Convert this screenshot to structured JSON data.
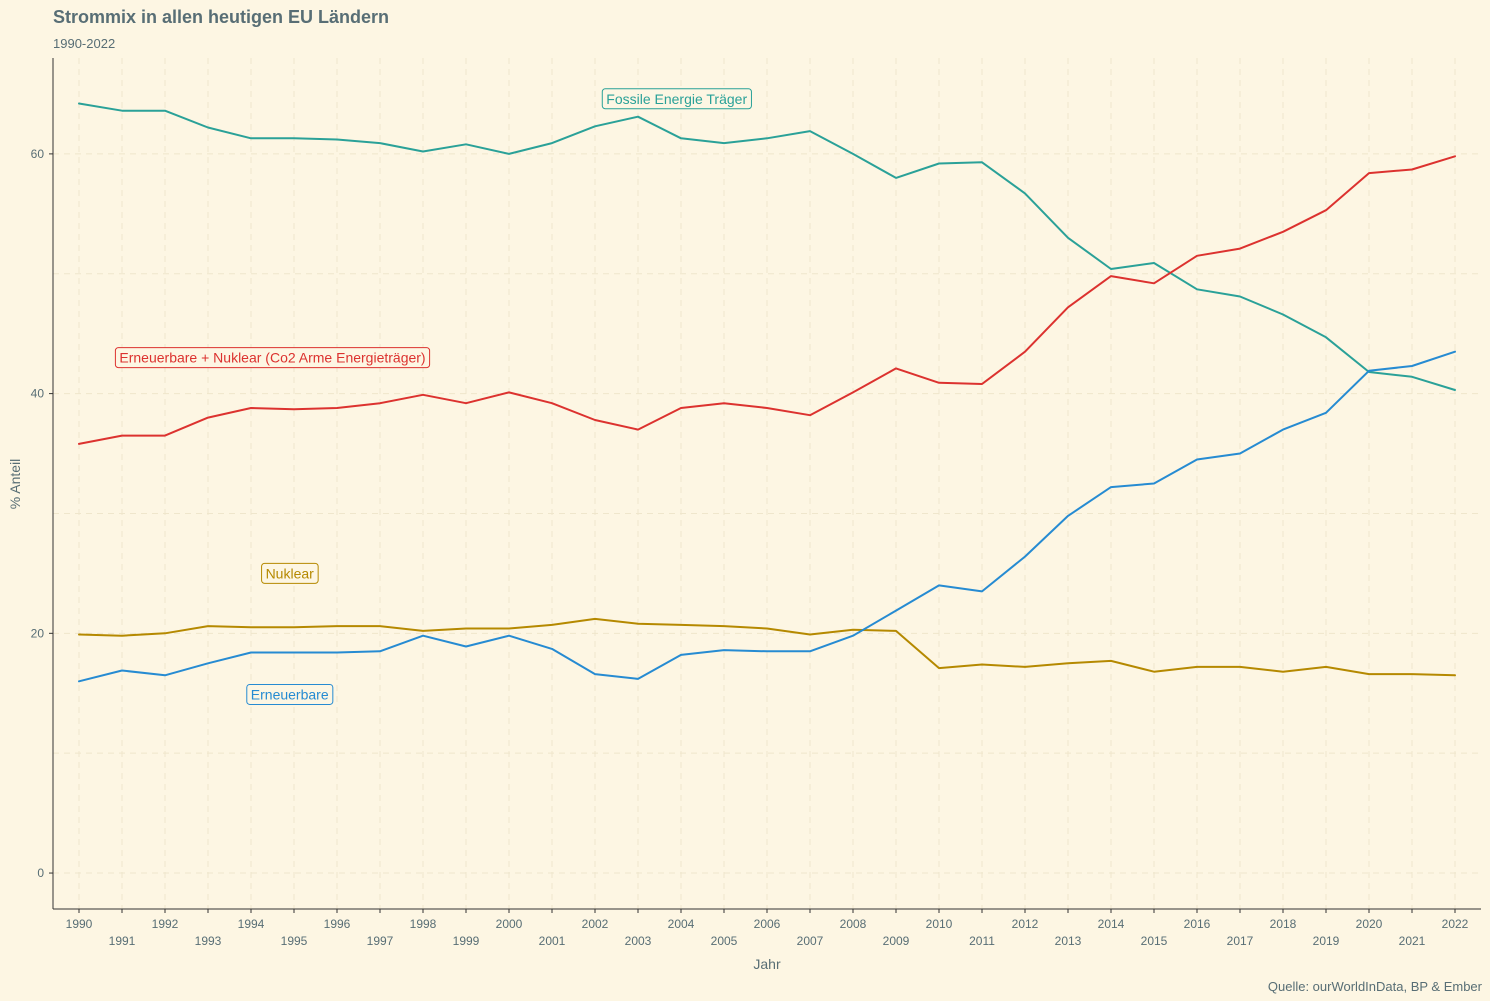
{
  "chart_data": {
    "type": "line",
    "title": "Strommix in allen heutigen EU Ländern",
    "subtitle": "1990-2022",
    "xlabel": "Jahr",
    "ylabel": "% Anteil",
    "caption": "Quelle: ourWorldInData, BP & Ember",
    "xlim": [
      1990,
      2022
    ],
    "ylim": [
      -3,
      68
    ],
    "y_ticks": [
      0,
      20,
      40,
      60
    ],
    "grid": true,
    "x": [
      1990,
      1991,
      1992,
      1993,
      1994,
      1995,
      1996,
      1997,
      1998,
      1999,
      2000,
      2001,
      2002,
      2003,
      2004,
      2005,
      2006,
      2007,
      2008,
      2009,
      2010,
      2011,
      2012,
      2013,
      2014,
      2015,
      2016,
      2017,
      2018,
      2019,
      2020,
      2021,
      2022
    ],
    "series": [
      {
        "name": "Fossile Energie Träger",
        "color": "#2aa198",
        "label_at": [
          2003.9,
          64.6
        ],
        "values": [
          64.2,
          63.6,
          63.6,
          62.2,
          61.3,
          61.3,
          61.2,
          60.9,
          60.2,
          60.8,
          60.0,
          60.9,
          62.3,
          63.1,
          61.3,
          60.9,
          61.3,
          61.9,
          60.0,
          58.0,
          59.2,
          59.3,
          56.7,
          53.0,
          50.4,
          50.9,
          48.7,
          48.1,
          46.6,
          44.7,
          41.8,
          41.4,
          40.3
        ]
      },
      {
        "name": "Erneuerbare + Nuklear (Co2 Arme Energieträger)",
        "color": "#dc322f",
        "label_at": [
          1994.5,
          43.0
        ],
        "values": [
          35.8,
          36.5,
          36.5,
          38.0,
          38.8,
          38.7,
          38.8,
          39.2,
          39.9,
          39.2,
          40.1,
          39.2,
          37.8,
          37.0,
          38.8,
          39.2,
          38.8,
          38.2,
          40.1,
          42.1,
          40.9,
          40.8,
          43.5,
          47.2,
          49.8,
          49.2,
          51.5,
          52.1,
          53.5,
          55.3,
          58.4,
          58.7,
          59.8
        ]
      },
      {
        "name": "Nuklear",
        "color": "#b58900",
        "label_at": [
          1994.9,
          25.0
        ],
        "values": [
          19.9,
          19.8,
          20.0,
          20.6,
          20.5,
          20.5,
          20.6,
          20.6,
          20.2,
          20.4,
          20.4,
          20.7,
          21.2,
          20.8,
          20.7,
          20.6,
          20.4,
          19.9,
          20.3,
          20.2,
          17.1,
          17.4,
          17.2,
          17.5,
          17.7,
          16.8,
          17.2,
          17.2,
          16.8,
          17.2,
          16.6,
          16.6,
          16.5
        ]
      },
      {
        "name": "Erneuerbare",
        "color": "#268bd2",
        "label_at": [
          1994.9,
          14.9
        ],
        "values": [
          16.0,
          16.9,
          16.5,
          17.5,
          18.4,
          18.4,
          18.4,
          18.5,
          19.8,
          18.9,
          19.8,
          18.7,
          16.6,
          16.2,
          18.2,
          18.6,
          18.5,
          18.5,
          19.8,
          21.9,
          24.0,
          23.5,
          26.4,
          29.8,
          32.2,
          32.5,
          34.5,
          35.0,
          37.0,
          38.4,
          41.9,
          42.3,
          43.5
        ]
      }
    ]
  }
}
